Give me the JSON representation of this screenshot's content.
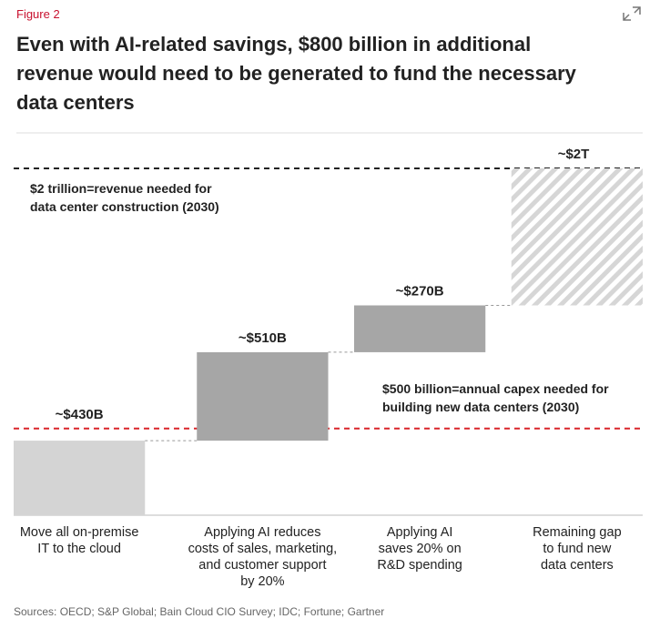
{
  "chart_data": {
    "type": "waterfall",
    "figure_label": "Figure 2",
    "title": "Even with AI-related savings, $800 billion in additional\nrevenue would need to be generated to fund the necessary\ndata centers",
    "categories": [
      "Move all on-premise\nIT to the cloud",
      "Applying AI reduces\ncosts of sales, marketing,\nand customer support\nby 20%",
      "Applying AI\nsaves 20% on\nR&D spending",
      "Remaining gap\nto fund new\ndata centers"
    ],
    "values": [
      430,
      510,
      270,
      790
    ],
    "value_labels": [
      "~$430B",
      "~$510B",
      "~$270B",
      null
    ],
    "colors": [
      "#d4d4d4",
      "#a6a6a6",
      "#a6a6a6",
      "#d6d6d6"
    ],
    "hatched": [
      false,
      false,
      false,
      true
    ],
    "ylim": [
      0,
      2000
    ],
    "reference_lines": [
      {
        "value": 2000,
        "label": "~$2T",
        "note": "$2 trillion=revenue needed for\ndata center construction (2030)",
        "color": "#222222"
      },
      {
        "value": 500,
        "note": "$500 billion=annual capex needed for\nbuilding new data centers (2030)",
        "color": "#d9262b"
      }
    ],
    "source": "Sources: OECD; S&P Global; Bain Cloud CIO Survey; IDC; Fortune; Gartner"
  }
}
